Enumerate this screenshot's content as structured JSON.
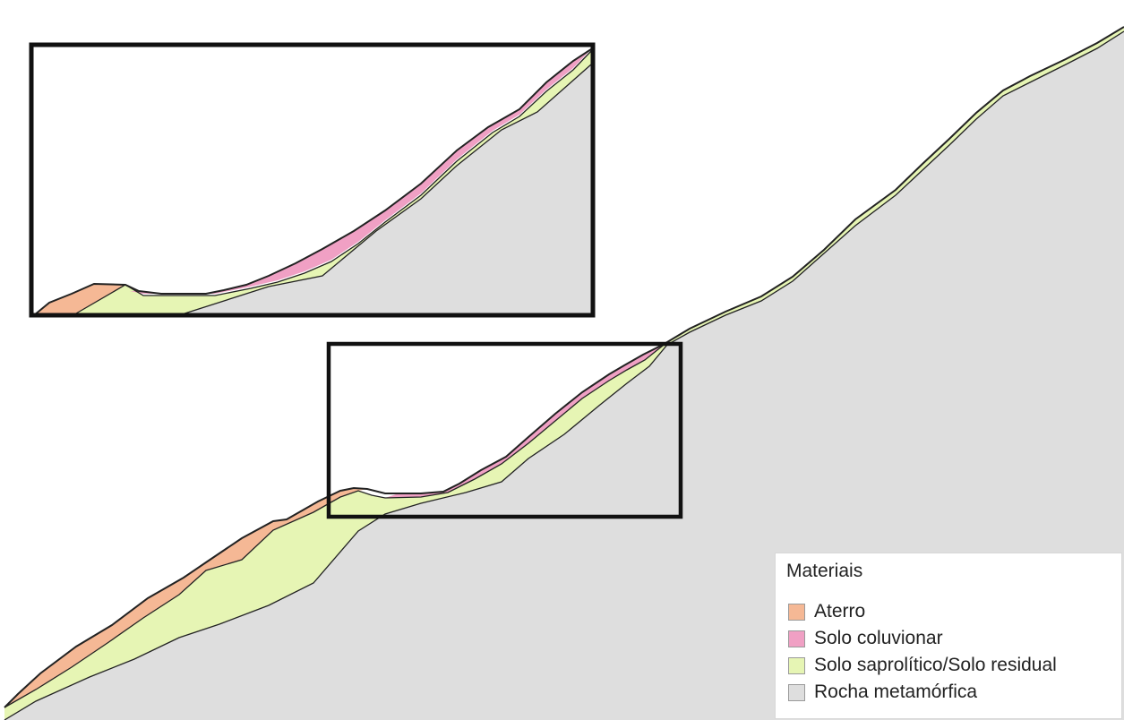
{
  "legend": {
    "title": "Materiais",
    "items": [
      {
        "key": "aterro",
        "label": "Aterro",
        "color": "#f5b895"
      },
      {
        "key": "coluvionar",
        "label": "Solo coluvionar",
        "color": "#f0a0c4"
      },
      {
        "key": "saprolitico",
        "label": "Solo saprolítico/Solo residual",
        "color": "#e6f5b4"
      },
      {
        "key": "rocha",
        "label": "Rocha metamórfica",
        "color": "#dedede"
      }
    ]
  },
  "colors": {
    "frame": "#111111",
    "boundary": "#222222",
    "background": "#ffffff"
  }
}
